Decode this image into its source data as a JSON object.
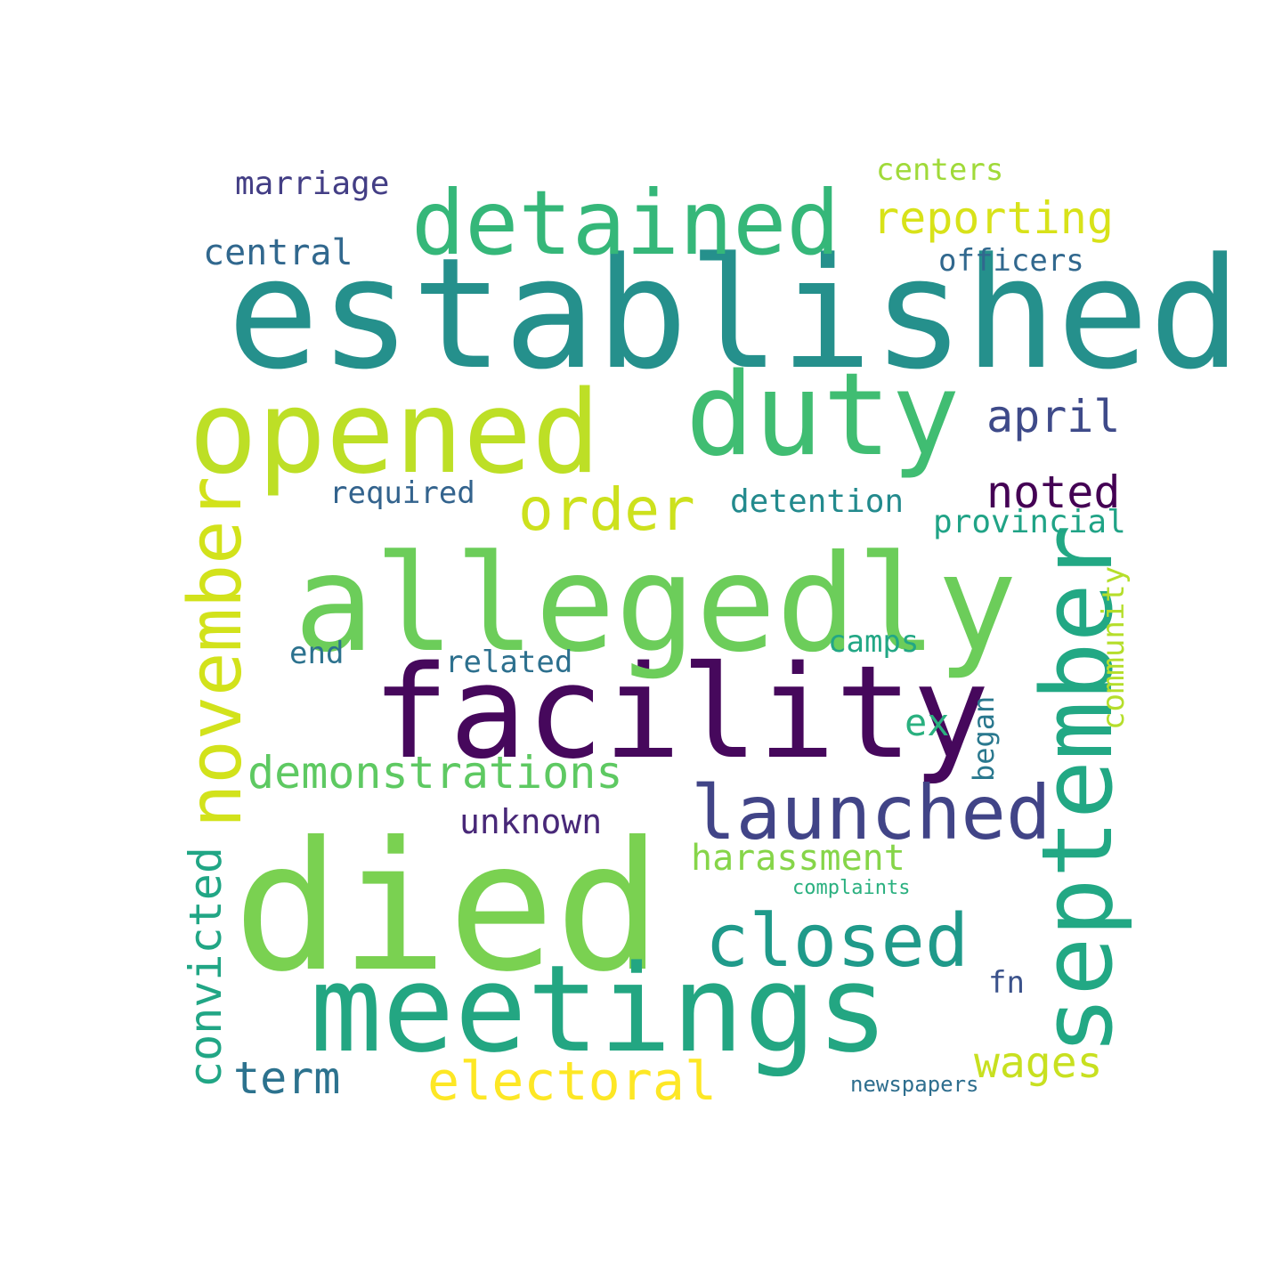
{
  "words": [
    {
      "text": "established",
      "color": "#25908c"
    },
    {
      "text": "died",
      "color": "#7ad151"
    },
    {
      "text": "facility",
      "color": "#46085c"
    },
    {
      "text": "allegedly",
      "color": "#6ccd5a"
    },
    {
      "text": "meetings",
      "color": "#23a682"
    },
    {
      "text": "opened",
      "color": "#bddf26"
    },
    {
      "text": "duty",
      "color": "#40bd72"
    },
    {
      "text": "detained",
      "color": "#35b779"
    },
    {
      "text": "september",
      "color": "#22a884"
    },
    {
      "text": "november",
      "color": "#d2e21b"
    },
    {
      "text": "launched",
      "color": "#414487"
    },
    {
      "text": "closed",
      "color": "#1f9a8a"
    },
    {
      "text": "order",
      "color": "#cde11d"
    },
    {
      "text": "electoral",
      "color": "#fde725"
    },
    {
      "text": "demonstrations",
      "color": "#5ec962"
    },
    {
      "text": "reporting",
      "color": "#d8e219"
    },
    {
      "text": "convicted",
      "color": "#21a685"
    },
    {
      "text": "noted",
      "color": "#440154"
    },
    {
      "text": "april",
      "color": "#3e4a89"
    },
    {
      "text": "wages",
      "color": "#c8e020"
    },
    {
      "text": "term",
      "color": "#2c728e"
    },
    {
      "text": "central",
      "color": "#31688e"
    },
    {
      "text": "harassment",
      "color": "#86d549"
    },
    {
      "text": "provincial",
      "color": "#20a386"
    },
    {
      "text": "detention",
      "color": "#238a8d"
    },
    {
      "text": "officers",
      "color": "#31688e"
    },
    {
      "text": "community",
      "color": "#b5de2b"
    },
    {
      "text": "unknown",
      "color": "#482878"
    },
    {
      "text": "ex",
      "color": "#2ab07f"
    },
    {
      "text": "camps",
      "color": "#22a785"
    },
    {
      "text": "required",
      "color": "#33638d"
    },
    {
      "text": "marriage",
      "color": "#433e85"
    },
    {
      "text": "related",
      "color": "#2d708e"
    },
    {
      "text": "centers",
      "color": "#a0da39"
    },
    {
      "text": "began",
      "color": "#2a788e"
    },
    {
      "text": "end",
      "color": "#2c728e"
    },
    {
      "text": "fn",
      "color": "#3b528b"
    },
    {
      "text": "newspapers",
      "color": "#2e6e8e"
    },
    {
      "text": "complaints",
      "color": "#2ab07f"
    }
  ]
}
